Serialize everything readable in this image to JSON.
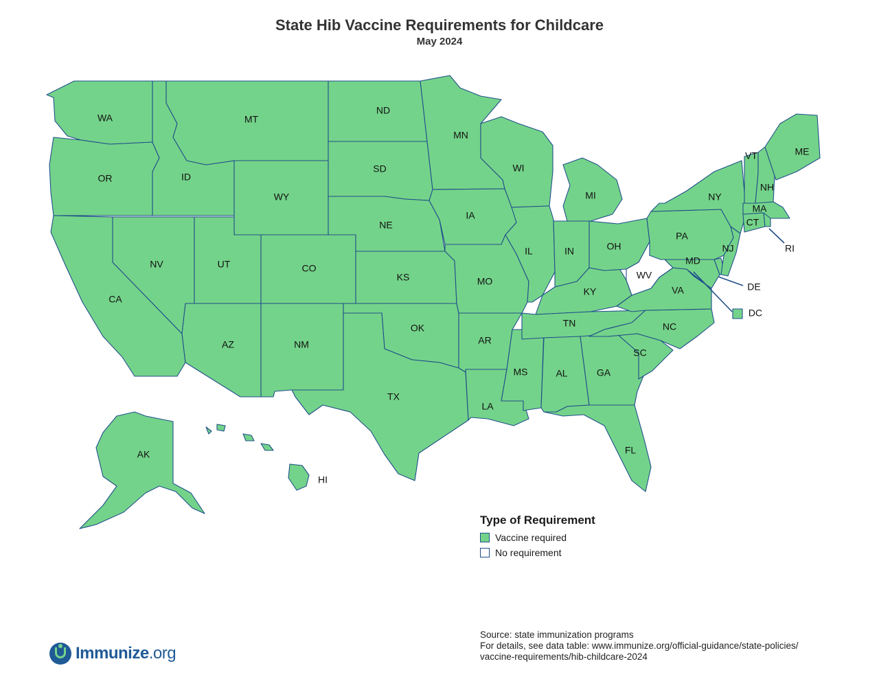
{
  "title": "State Hib Vaccine Requirements for Childcare",
  "subtitle": "May 2024",
  "colors": {
    "required": "#74d38a",
    "none": "#ffffff",
    "border": "#1f4f8a"
  },
  "legend": {
    "title": "Type of Requirement",
    "items": [
      {
        "label": "Vaccine required",
        "status": "required"
      },
      {
        "label": "No requirement",
        "status": "none"
      }
    ]
  },
  "states": {
    "WA": "required",
    "OR": "required",
    "CA": "required",
    "ID": "required",
    "NV": "required",
    "MT": "required",
    "WY": "required",
    "UT": "required",
    "AZ": "required",
    "CO": "required",
    "NM": "required",
    "ND": "required",
    "SD": "required",
    "NE": "required",
    "KS": "required",
    "OK": "required",
    "TX": "required",
    "MN": "required",
    "IA": "required",
    "MO": "required",
    "AR": "required",
    "LA": "required",
    "WI": "required",
    "IL": "required",
    "MS": "required",
    "MI": "required",
    "IN": "required",
    "KY": "required",
    "TN": "required",
    "AL": "required",
    "OH": "required",
    "GA": "required",
    "FL": "required",
    "SC": "required",
    "NC": "required",
    "VA": "required",
    "WV": "none",
    "PA": "required",
    "NY": "required",
    "MD": "required",
    "DE": "required",
    "NJ": "required",
    "CT": "required",
    "RI": "required",
    "MA": "required",
    "VT": "required",
    "NH": "required",
    "ME": "required",
    "AK": "required",
    "HI": "required",
    "DC": "required"
  },
  "source": {
    "line1": "Source: state immunization programs",
    "line2": "For details, see data table: www.immunize.org/official-guidance/state-policies/",
    "line3": "vaccine-requirements/hib-childcare-2024"
  },
  "logo": {
    "name": "Immunize",
    "tld": ".org"
  }
}
